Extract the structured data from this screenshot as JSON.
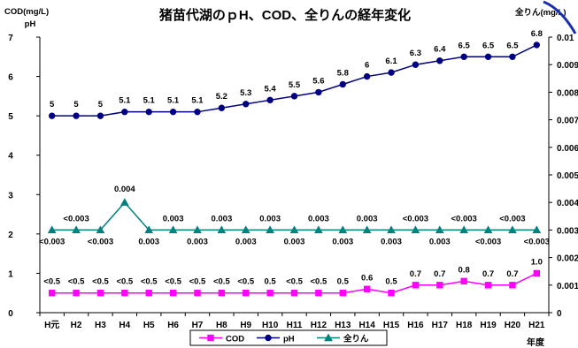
{
  "chart_data": {
    "type": "line",
    "title": "猪苗代湖のｐH、COD、全りんの経年変化",
    "left_axis_label_1": "COD(mg/L)",
    "left_axis_label_2": "pH",
    "right_axis_label": "全りん(mg/L)",
    "xlabel": "年度",
    "categories": [
      "H元",
      "H2",
      "H3",
      "H4",
      "H5",
      "H6",
      "H7",
      "H8",
      "H9",
      "H10",
      "H11",
      "H12",
      "H13",
      "H14",
      "H15",
      "H16",
      "H17",
      "H18",
      "H19",
      "H20",
      "H21"
    ],
    "ylim_left": [
      0,
      7
    ],
    "ylim_right": [
      0,
      0.01
    ],
    "yticks_left": [
      "0",
      "1",
      "2",
      "3",
      "4",
      "5",
      "6",
      "7"
    ],
    "yticks_right": [
      "0",
      "0.001",
      "0.002",
      "0.003",
      "0.004",
      "0.005",
      "0.006",
      "0.007",
      "0.008",
      "0.009",
      "0.01"
    ],
    "grid": false,
    "legend_position": "bottom",
    "series": [
      {
        "name": "COD",
        "axis": "left",
        "color": "#ff00ff",
        "marker": "square",
        "values": [
          0.5,
          0.5,
          0.5,
          0.5,
          0.5,
          0.5,
          0.5,
          0.5,
          0.5,
          0.5,
          0.5,
          0.5,
          0.5,
          0.6,
          0.5,
          0.7,
          0.7,
          0.8,
          0.7,
          0.7,
          1.0
        ],
        "labels": [
          "<0.5",
          "<0.5",
          "<0.5",
          "<0.5",
          "<0.5",
          "<0.5",
          "<0.5",
          "<0.5",
          "<0.5",
          "0.5",
          "<0.5",
          "<0.5",
          "0.5",
          "0.6",
          "0.5",
          "0.7",
          "0.7",
          "0.8",
          "0.7",
          "0.7",
          "1.0"
        ]
      },
      {
        "name": "pH",
        "axis": "left",
        "color": "#000080",
        "marker": "circle",
        "values": [
          5,
          5,
          5,
          5.1,
          5.1,
          5.1,
          5.1,
          5.2,
          5.3,
          5.4,
          5.5,
          5.6,
          5.8,
          6,
          6.1,
          6.3,
          6.4,
          6.5,
          6.5,
          6.5,
          6.8
        ],
        "labels": [
          "5",
          "5",
          "5",
          "5.1",
          "5.1",
          "5.1",
          "5.1",
          "5.2",
          "5.3",
          "5.4",
          "5.5",
          "5.6",
          "5.8",
          "6",
          "6.1",
          "6.3",
          "6.4",
          "6.5",
          "6.5",
          "6.5",
          "6.8"
        ]
      },
      {
        "name": "全りん",
        "axis": "right",
        "color": "#008080",
        "marker": "triangle",
        "values": [
          0.003,
          0.003,
          0.003,
          0.004,
          0.003,
          0.003,
          0.003,
          0.003,
          0.003,
          0.003,
          0.003,
          0.003,
          0.003,
          0.003,
          0.003,
          0.003,
          0.003,
          0.003,
          0.003,
          0.003,
          0.003
        ],
        "labels": [
          "<0.003",
          "<0.003",
          "<0.003",
          "0.004",
          "0.003",
          "0.003",
          "0.003",
          "0.003",
          "0.003",
          "0.003",
          "0.003",
          "0.003",
          "0.003",
          "0.003",
          "0.003",
          "<0.003",
          "0.003",
          "<0.003",
          "<0.003",
          "<0.003",
          "<0.003"
        ]
      }
    ]
  }
}
